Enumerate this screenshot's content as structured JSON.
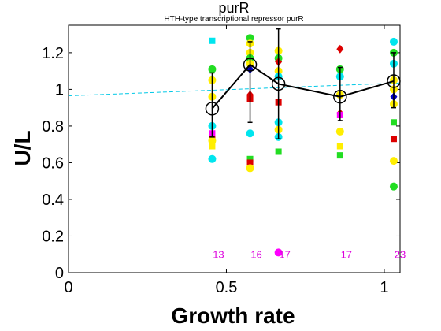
{
  "chart_data": {
    "type": "scatter",
    "title": "purR",
    "subtitle": "HTH-type transcriptional repressor purR",
    "xlabel": "Growth rate",
    "ylabel": "U/L",
    "xlim": [
      0,
      1.05
    ],
    "ylim": [
      0,
      1.35
    ],
    "xticks": [
      0,
      0.5,
      1
    ],
    "xtick_labels": [
      "0",
      "0.5",
      "1"
    ],
    "yticks": [
      0,
      0.2,
      0.4,
      0.6,
      0.8,
      1,
      1.2
    ],
    "ytick_labels": [
      "0",
      "0.2",
      "0.4",
      "0.6",
      "0.8",
      "1",
      "1.2"
    ],
    "grid": false,
    "legend": "none",
    "fit_line": {
      "x": [
        0,
        1.05
      ],
      "y": [
        0.965,
        1.035
      ],
      "color": "#00c8e6",
      "style": "dashed"
    },
    "mean_series": {
      "x": [
        0.455,
        0.575,
        0.665,
        0.86,
        1.03
      ],
      "y": [
        0.895,
        1.135,
        1.03,
        0.96,
        1.045
      ],
      "err_low": [
        0.74,
        0.82,
        0.73,
        0.83,
        0.9
      ],
      "err_high": [
        1.09,
        1.26,
        1.33,
        1.12,
        1.2
      ],
      "color": "#000000"
    },
    "points": [
      {
        "x": 0.455,
        "y": 1.265,
        "color": "#00e5ee",
        "shape": "square"
      },
      {
        "x": 0.455,
        "y": 1.11,
        "color": "#22dd22",
        "shape": "circle"
      },
      {
        "x": 0.455,
        "y": 1.05,
        "color": "#ffee00",
        "shape": "circle"
      },
      {
        "x": 0.455,
        "y": 0.96,
        "color": "#ffee00",
        "shape": "circle"
      },
      {
        "x": 0.455,
        "y": 0.8,
        "color": "#00e5ee",
        "shape": "circle"
      },
      {
        "x": 0.455,
        "y": 0.76,
        "color": "#ff00ff",
        "shape": "square"
      },
      {
        "x": 0.455,
        "y": 0.73,
        "color": "#dd0000",
        "shape": "square"
      },
      {
        "x": 0.455,
        "y": 0.72,
        "color": "#ffee00",
        "shape": "circle"
      },
      {
        "x": 0.455,
        "y": 0.69,
        "color": "#ffee00",
        "shape": "square"
      },
      {
        "x": 0.455,
        "y": 0.62,
        "color": "#00e5ee",
        "shape": "circle"
      },
      {
        "x": 0.575,
        "y": 1.28,
        "color": "#22dd22",
        "shape": "circle"
      },
      {
        "x": 0.575,
        "y": 1.25,
        "color": "#ffee00",
        "shape": "circle"
      },
      {
        "x": 0.575,
        "y": 1.2,
        "color": "#ffee00",
        "shape": "circle"
      },
      {
        "x": 0.575,
        "y": 1.17,
        "color": "#22dd22",
        "shape": "circle"
      },
      {
        "x": 0.575,
        "y": 1.14,
        "color": "#ffee00",
        "shape": "circle"
      },
      {
        "x": 0.575,
        "y": 1.11,
        "color": "#0000cc",
        "shape": "diamond"
      },
      {
        "x": 0.575,
        "y": 0.97,
        "color": "#dd0000",
        "shape": "diamond"
      },
      {
        "x": 0.575,
        "y": 0.95,
        "color": "#dd0000",
        "shape": "square"
      },
      {
        "x": 0.575,
        "y": 0.76,
        "color": "#00e5ee",
        "shape": "circle"
      },
      {
        "x": 0.575,
        "y": 0.62,
        "color": "#22dd22",
        "shape": "square"
      },
      {
        "x": 0.575,
        "y": 0.6,
        "color": "#dd0000",
        "shape": "square"
      },
      {
        "x": 0.575,
        "y": 0.57,
        "color": "#ffee00",
        "shape": "circle"
      },
      {
        "x": 0.665,
        "y": 1.21,
        "color": "#ffee00",
        "shape": "circle"
      },
      {
        "x": 0.665,
        "y": 1.17,
        "color": "#22dd22",
        "shape": "circle"
      },
      {
        "x": 0.665,
        "y": 1.15,
        "color": "#dd0000",
        "shape": "diamond"
      },
      {
        "x": 0.665,
        "y": 1.1,
        "color": "#ffee00",
        "shape": "circle"
      },
      {
        "x": 0.665,
        "y": 1.07,
        "color": "#00e5ee",
        "shape": "circle"
      },
      {
        "x": 0.665,
        "y": 0.93,
        "color": "#dd0000",
        "shape": "square"
      },
      {
        "x": 0.665,
        "y": 0.82,
        "color": "#00e5ee",
        "shape": "circle"
      },
      {
        "x": 0.665,
        "y": 0.78,
        "color": "#ffee00",
        "shape": "circle"
      },
      {
        "x": 0.665,
        "y": 0.74,
        "color": "#00e5ee",
        "shape": "circle"
      },
      {
        "x": 0.665,
        "y": 0.66,
        "color": "#22dd22",
        "shape": "square"
      },
      {
        "x": 0.665,
        "y": 0.11,
        "color": "#ff00ff",
        "shape": "circle"
      },
      {
        "x": 0.86,
        "y": 1.22,
        "color": "#dd0000",
        "shape": "diamond"
      },
      {
        "x": 0.86,
        "y": 1.11,
        "color": "#22dd22",
        "shape": "circle"
      },
      {
        "x": 0.86,
        "y": 1.07,
        "color": "#00e5ee",
        "shape": "circle"
      },
      {
        "x": 0.86,
        "y": 0.97,
        "color": "#ffee00",
        "shape": "circle"
      },
      {
        "x": 0.86,
        "y": 0.87,
        "color": "#dd0000",
        "shape": "diamond"
      },
      {
        "x": 0.86,
        "y": 0.86,
        "color": "#ff00ff",
        "shape": "square"
      },
      {
        "x": 0.86,
        "y": 0.77,
        "color": "#ffee00",
        "shape": "circle"
      },
      {
        "x": 0.86,
        "y": 0.69,
        "color": "#ffee00",
        "shape": "square"
      },
      {
        "x": 0.86,
        "y": 0.64,
        "color": "#22dd22",
        "shape": "square"
      },
      {
        "x": 1.03,
        "y": 1.26,
        "color": "#00e5ee",
        "shape": "circle"
      },
      {
        "x": 1.03,
        "y": 1.2,
        "color": "#22dd22",
        "shape": "circle"
      },
      {
        "x": 1.03,
        "y": 1.14,
        "color": "#00e5ee",
        "shape": "circle"
      },
      {
        "x": 1.03,
        "y": 1.05,
        "color": "#ffee00",
        "shape": "circle"
      },
      {
        "x": 1.03,
        "y": 1.0,
        "color": "#ffee00",
        "shape": "circle"
      },
      {
        "x": 1.03,
        "y": 0.96,
        "color": "#0000cc",
        "shape": "diamond"
      },
      {
        "x": 1.03,
        "y": 0.92,
        "color": "#ffee00",
        "shape": "circle"
      },
      {
        "x": 1.03,
        "y": 0.82,
        "color": "#22dd22",
        "shape": "square"
      },
      {
        "x": 1.03,
        "y": 0.73,
        "color": "#dd0000",
        "shape": "square"
      },
      {
        "x": 1.03,
        "y": 0.61,
        "color": "#ffee00",
        "shape": "circle"
      },
      {
        "x": 1.03,
        "y": 0.47,
        "color": "#22dd22",
        "shape": "circle"
      }
    ],
    "count_labels": [
      {
        "x": 0.455,
        "text": "13"
      },
      {
        "x": 0.575,
        "text": "16"
      },
      {
        "x": 0.665,
        "text": "17"
      },
      {
        "x": 0.86,
        "text": "17"
      },
      {
        "x": 1.03,
        "text": "23"
      }
    ],
    "count_label_y": 0.1,
    "count_label_color": "#dd00dd"
  }
}
